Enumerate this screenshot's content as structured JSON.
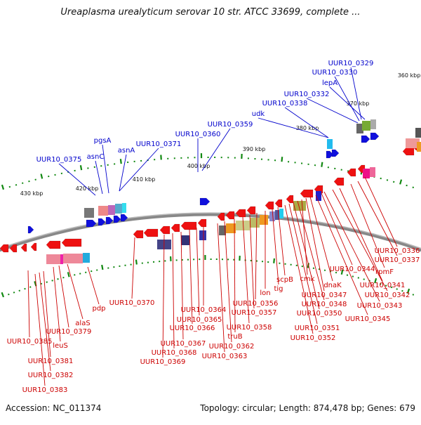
{
  "title": "Ureaplasma urealyticum serovar 10 str. ATCC 33699, complete ...",
  "footer": {
    "accession": "Accession: NC_011374",
    "topology": "Topology: circular; Length: 874,478 bp; Genes: 679"
  },
  "colors": {
    "forward_label": "#0000cc",
    "reverse_label": "#cc0000",
    "backbone": "#888888",
    "tick": "#118811"
  },
  "kbp_ticks": [
    "360 kbp",
    "370 kbp",
    "380 kbp",
    "390 kbp",
    "400 kbp",
    "410 kbp",
    "420 kbp",
    "430 kbp"
  ],
  "forward_labels": [
    "UUR10_0329",
    "UUR10_0330",
    "lepA",
    "UUR10_0332",
    "UUR10_0338",
    "udk",
    "UUR10_0359",
    "UUR10_0360",
    "UUR10_0371",
    "asnA",
    "pgsA",
    "asnC",
    "UUR10_0375"
  ],
  "reverse_labels": [
    "UUR10_0336",
    "UUR10_0337",
    "rpmF",
    "UUR10_0341",
    "UUR10_0342",
    "UUR10_0343",
    "UUR10_0344",
    "UUR10_0345",
    "dnaK",
    "UUR10_0347",
    "cmk",
    "UUR10_0348",
    "UUR10_0350",
    "UUR10_0351",
    "UUR10_0352",
    "scpB",
    "tig",
    "lon",
    "UUR10_0356",
    "UUR10_0357",
    "UUR10_0358",
    "truB",
    "UUR10_0362",
    "UUR10_0363",
    "UUR10_0364",
    "UUR10_0365",
    "UUR10_0366",
    "UUR10_0367",
    "UUR10_0368",
    "UUR10_0369",
    "UUR10_0370",
    "pdp",
    "alaS",
    "UUR10_0379",
    "leuS",
    "UUR10_0385",
    "UUR10_0381",
    "UUR10_0382",
    "UUR10_0383"
  ]
}
